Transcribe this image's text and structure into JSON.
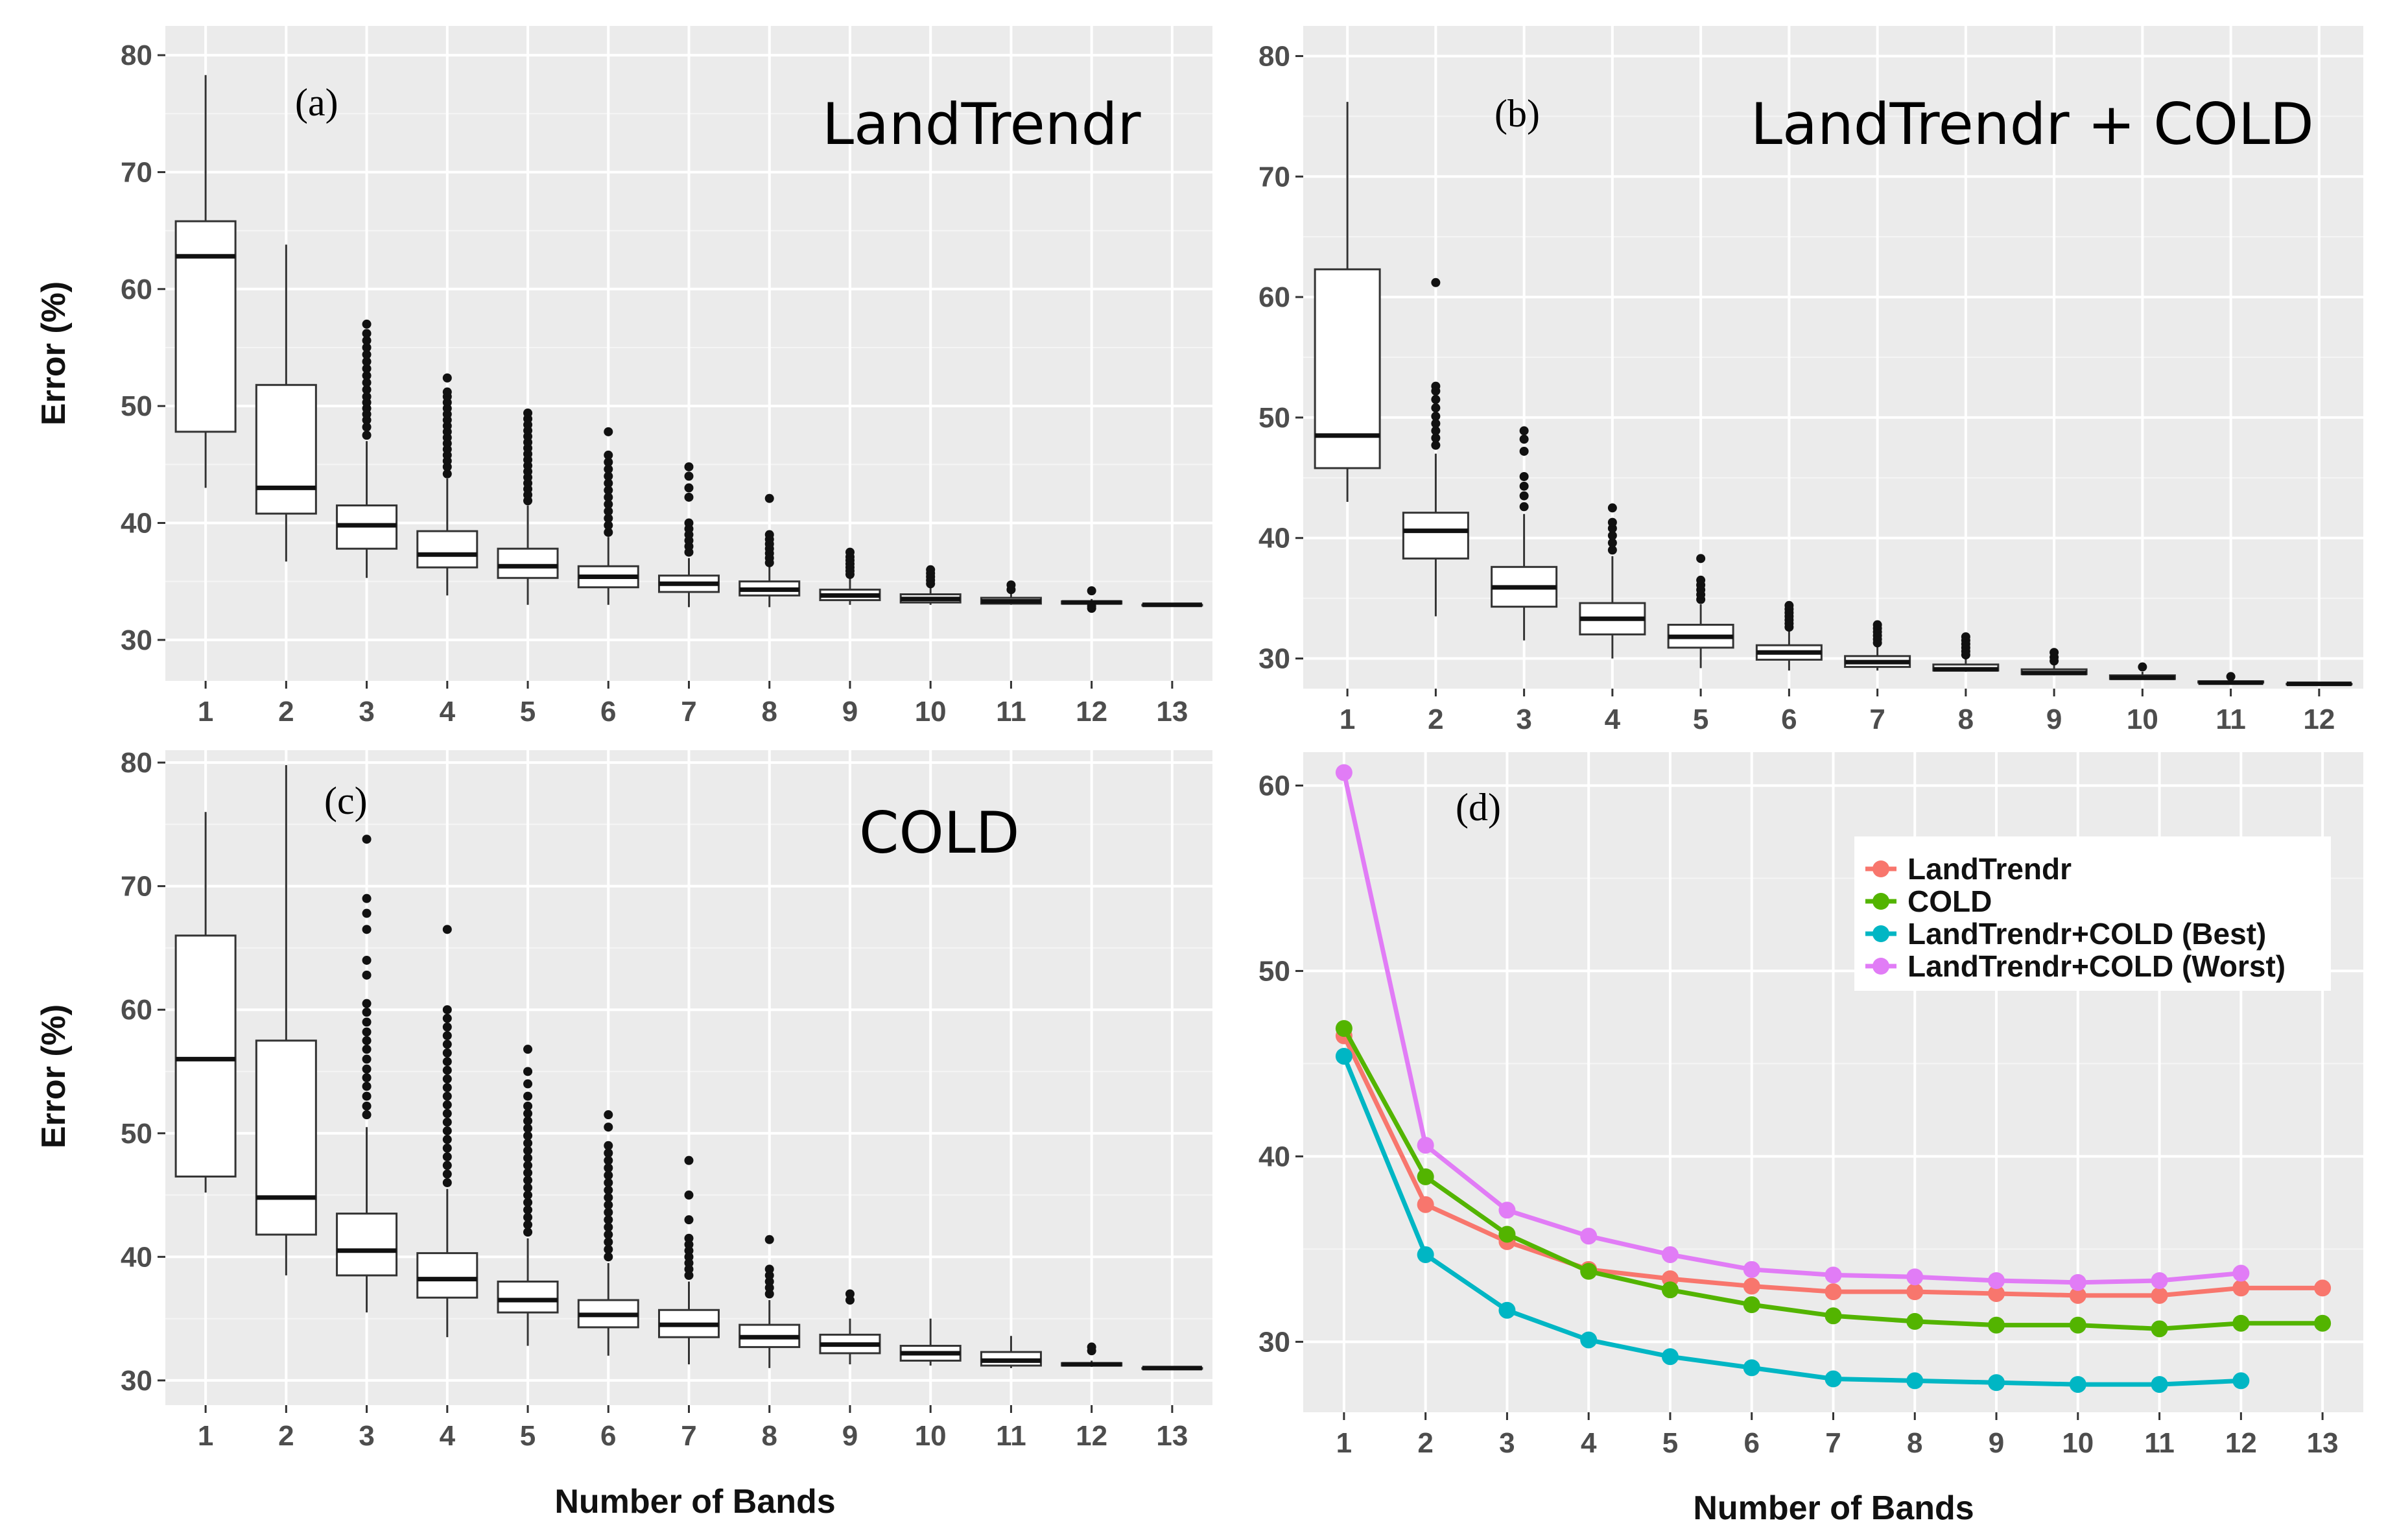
{
  "figure": {
    "xlabel": "Number of Bands",
    "ylabel": "Error (%)"
  },
  "chart_data": [
    {
      "id": "a",
      "type": "boxplot",
      "panel_label": "(a)",
      "title": "LandTrendr",
      "ylabel": "Error (%)",
      "xlabel": "",
      "ylim": [
        26.5,
        82.5
      ],
      "yticks": [
        30,
        40,
        50,
        60,
        70,
        80
      ],
      "categories": [
        "1",
        "2",
        "3",
        "4",
        "5",
        "6",
        "7",
        "8",
        "9",
        "10",
        "11",
        "12",
        "13"
      ],
      "boxes": [
        {
          "whislo": 43.0,
          "q1": 47.8,
          "med": 62.8,
          "q3": 65.8,
          "whishi": 78.3,
          "outliers": []
        },
        {
          "whislo": 36.7,
          "q1": 40.8,
          "med": 43.0,
          "q3": 51.8,
          "whishi": 63.8,
          "outliers": []
        },
        {
          "whislo": 35.3,
          "q1": 37.8,
          "med": 39.8,
          "q3": 41.5,
          "whishi": 47.0,
          "outliers": [
            47.5,
            48.2,
            48.8,
            49.3,
            49.8,
            50.3,
            50.8,
            51.4,
            52.0,
            52.6,
            53.2,
            53.8,
            54.4,
            55.0,
            55.6,
            56.2,
            57.0
          ]
        },
        {
          "whislo": 33.8,
          "q1": 36.2,
          "med": 37.3,
          "q3": 39.3,
          "whishi": 43.8,
          "outliers": [
            44.2,
            44.8,
            45.3,
            45.8,
            46.3,
            46.8,
            47.3,
            47.8,
            48.3,
            48.8,
            49.3,
            49.8,
            50.3,
            50.8,
            51.2,
            52.4
          ]
        },
        {
          "whislo": 33.0,
          "q1": 35.3,
          "med": 36.3,
          "q3": 37.8,
          "whishi": 41.5,
          "outliers": [
            41.9,
            42.4,
            42.9,
            43.4,
            43.9,
            44.4,
            44.9,
            45.4,
            45.9,
            46.4,
            46.9,
            47.4,
            47.9,
            48.4,
            48.9,
            49.4
          ]
        },
        {
          "whislo": 33.0,
          "q1": 34.5,
          "med": 35.4,
          "q3": 36.3,
          "whishi": 38.8,
          "outliers": [
            39.2,
            39.8,
            40.4,
            41.0,
            41.6,
            42.2,
            42.8,
            43.4,
            44.0,
            44.6,
            45.2,
            45.8,
            47.8
          ]
        },
        {
          "whislo": 32.8,
          "q1": 34.1,
          "med": 34.8,
          "q3": 35.5,
          "whishi": 37.0,
          "outliers": [
            37.5,
            38.0,
            38.5,
            39.0,
            39.5,
            40.0,
            42.2,
            43.0,
            44.0,
            44.8
          ]
        },
        {
          "whislo": 32.8,
          "q1": 33.8,
          "med": 34.3,
          "q3": 35.0,
          "whishi": 36.3,
          "outliers": [
            36.6,
            37.0,
            37.4,
            37.8,
            38.2,
            38.6,
            39.0,
            42.1
          ]
        },
        {
          "whislo": 33.0,
          "q1": 33.4,
          "med": 33.8,
          "q3": 34.3,
          "whishi": 35.3,
          "outliers": [
            35.6,
            35.9,
            36.2,
            36.5,
            36.8,
            37.1,
            37.5
          ]
        },
        {
          "whislo": 33.0,
          "q1": 33.2,
          "med": 33.5,
          "q3": 33.9,
          "whishi": 34.5,
          "outliers": [
            34.8,
            35.1,
            35.4,
            35.7,
            36.0
          ]
        },
        {
          "whislo": 33.0,
          "q1": 33.1,
          "med": 33.3,
          "q3": 33.6,
          "whishi": 34.0,
          "outliers": [
            34.3,
            34.7
          ]
        },
        {
          "whislo": 33.0,
          "q1": 33.1,
          "med": 33.2,
          "q3": 33.3,
          "whishi": 33.5,
          "outliers": [
            32.7,
            32.9,
            34.2
          ]
        },
        {
          "whislo": 33.0,
          "q1": 33.0,
          "med": 33.0,
          "q3": 33.0,
          "whishi": 33.0,
          "outliers": []
        }
      ]
    },
    {
      "id": "b",
      "type": "boxplot",
      "panel_label": "(b)",
      "title": "LandTrendr + COLD",
      "ylabel": "",
      "xlabel": "",
      "ylim": [
        27.5,
        82.5
      ],
      "yticks": [
        30,
        40,
        50,
        60,
        70,
        80
      ],
      "categories": [
        "1",
        "2",
        "3",
        "4",
        "5",
        "6",
        "7",
        "8",
        "9",
        "10",
        "11",
        "12"
      ],
      "boxes": [
        {
          "whislo": 43.0,
          "q1": 45.8,
          "med": 48.5,
          "q3": 62.3,
          "whishi": 76.2,
          "outliers": []
        },
        {
          "whislo": 33.5,
          "q1": 38.3,
          "med": 40.6,
          "q3": 42.1,
          "whishi": 47.0,
          "outliers": [
            47.7,
            48.3,
            48.9,
            49.5,
            50.1,
            50.8,
            51.5,
            52.2,
            52.6,
            61.2
          ]
        },
        {
          "whislo": 31.5,
          "q1": 34.3,
          "med": 35.9,
          "q3": 37.6,
          "whishi": 42.0,
          "outliers": [
            42.6,
            43.5,
            44.3,
            45.1,
            47.2,
            48.2,
            48.9
          ]
        },
        {
          "whislo": 30.0,
          "q1": 32.0,
          "med": 33.3,
          "q3": 34.6,
          "whishi": 38.5,
          "outliers": [
            39.0,
            39.6,
            40.2,
            40.8,
            41.3,
            42.5
          ]
        },
        {
          "whislo": 29.2,
          "q1": 30.9,
          "med": 31.8,
          "q3": 32.8,
          "whishi": 34.5,
          "outliers": [
            34.9,
            35.3,
            35.7,
            36.1,
            36.5,
            38.3
          ]
        },
        {
          "whislo": 29.0,
          "q1": 29.9,
          "med": 30.5,
          "q3": 31.1,
          "whishi": 32.3,
          "outliers": [
            32.6,
            32.9,
            33.2,
            33.5,
            33.8,
            34.1,
            34.4
          ]
        },
        {
          "whislo": 29.0,
          "q1": 29.3,
          "med": 29.7,
          "q3": 30.2,
          "whishi": 31.0,
          "outliers": [
            31.3,
            31.6,
            31.9,
            32.2,
            32.5,
            32.8
          ]
        },
        {
          "whislo": 28.9,
          "q1": 29.0,
          "med": 29.1,
          "q3": 29.5,
          "whishi": 30.0,
          "outliers": [
            30.3,
            30.6,
            30.9,
            31.2,
            31.5,
            31.8
          ]
        },
        {
          "whislo": 28.6,
          "q1": 28.7,
          "med": 28.8,
          "q3": 29.1,
          "whishi": 29.5,
          "outliers": [
            29.8,
            30.1,
            30.5
          ]
        },
        {
          "whislo": 28.3,
          "q1": 28.3,
          "med": 28.4,
          "q3": 28.6,
          "whishi": 28.9,
          "outliers": [
            29.3
          ]
        },
        {
          "whislo": 28.0,
          "q1": 28.0,
          "med": 28.0,
          "q3": 28.1,
          "whishi": 28.1,
          "outliers": [
            28.5
          ]
        },
        {
          "whislo": 27.9,
          "q1": 27.9,
          "med": 27.9,
          "q3": 27.9,
          "whishi": 27.9,
          "outliers": []
        }
      ]
    },
    {
      "id": "c",
      "type": "boxplot",
      "panel_label": "(c)",
      "title": "COLD",
      "ylabel": "Error (%)",
      "xlabel": "Number of Bands",
      "ylim": [
        28.0,
        81.0
      ],
      "yticks": [
        30,
        40,
        50,
        60,
        70,
        80
      ],
      "categories": [
        "1",
        "2",
        "3",
        "4",
        "5",
        "6",
        "7",
        "8",
        "9",
        "10",
        "11",
        "12",
        "13"
      ],
      "boxes": [
        {
          "whislo": 45.2,
          "q1": 46.5,
          "med": 56.0,
          "q3": 66.0,
          "whishi": 76.0,
          "outliers": []
        },
        {
          "whislo": 38.5,
          "q1": 41.8,
          "med": 44.8,
          "q3": 57.5,
          "whishi": 79.8,
          "outliers": []
        },
        {
          "whislo": 35.5,
          "q1": 38.5,
          "med": 40.5,
          "q3": 43.5,
          "whishi": 50.5,
          "outliers": [
            51.5,
            52.2,
            53.0,
            53.8,
            54.5,
            55.2,
            56.0,
            56.8,
            57.5,
            58.2,
            59.0,
            59.8,
            60.5,
            62.8,
            64.0,
            66.5,
            67.8,
            69.0,
            73.8
          ]
        },
        {
          "whislo": 33.5,
          "q1": 36.7,
          "med": 38.2,
          "q3": 40.3,
          "whishi": 45.5,
          "outliers": [
            46.0,
            46.7,
            47.4,
            48.1,
            48.8,
            49.5,
            50.2,
            50.9,
            51.6,
            52.3,
            53.0,
            53.7,
            54.4,
            55.1,
            55.8,
            56.5,
            57.2,
            57.9,
            58.6,
            59.3,
            60.0,
            66.5
          ]
        },
        {
          "whislo": 32.8,
          "q1": 35.5,
          "med": 36.5,
          "q3": 38.0,
          "whishi": 41.5,
          "outliers": [
            42.0,
            42.6,
            43.2,
            43.8,
            44.4,
            45.0,
            45.6,
            46.2,
            46.8,
            47.4,
            48.0,
            48.6,
            49.2,
            49.8,
            50.4,
            51.0,
            51.6,
            52.2,
            53.0,
            54.0,
            55.0,
            56.8
          ]
        },
        {
          "whislo": 32.0,
          "q1": 34.3,
          "med": 35.3,
          "q3": 36.5,
          "whishi": 39.5,
          "outliers": [
            40.0,
            40.6,
            41.2,
            41.8,
            42.4,
            43.0,
            43.6,
            44.2,
            44.8,
            45.4,
            46.0,
            46.6,
            47.2,
            47.8,
            48.4,
            49.0,
            50.5,
            51.5
          ]
        },
        {
          "whislo": 31.3,
          "q1": 33.5,
          "med": 34.5,
          "q3": 35.7,
          "whishi": 38.0,
          "outliers": [
            38.5,
            39.0,
            39.5,
            40.0,
            40.5,
            41.0,
            41.5,
            43.0,
            45.0,
            47.8
          ]
        },
        {
          "whislo": 31.0,
          "q1": 32.7,
          "med": 33.5,
          "q3": 34.5,
          "whishi": 36.5,
          "outliers": [
            37.0,
            37.5,
            38.0,
            38.5,
            39.0,
            41.4
          ]
        },
        {
          "whislo": 31.3,
          "q1": 32.2,
          "med": 32.9,
          "q3": 33.7,
          "whishi": 35.0,
          "outliers": [
            36.5,
            37.0
          ]
        },
        {
          "whislo": 31.2,
          "q1": 31.6,
          "med": 32.2,
          "q3": 32.8,
          "whishi": 35.0,
          "outliers": []
        },
        {
          "whislo": 31.0,
          "q1": 31.2,
          "med": 31.6,
          "q3": 32.3,
          "whishi": 33.6,
          "outliers": []
        },
        {
          "whislo": 31.1,
          "q1": 31.2,
          "med": 31.3,
          "q3": 31.4,
          "whishi": 31.6,
          "outliers": [
            32.4,
            32.7
          ]
        },
        {
          "whislo": 31.0,
          "q1": 31.0,
          "med": 31.0,
          "q3": 31.0,
          "whishi": 31.0,
          "outliers": []
        }
      ]
    },
    {
      "id": "d",
      "type": "line",
      "panel_label": "(d)",
      "title": "",
      "ylabel": "",
      "xlabel": "Number of Bands",
      "xlim": [
        0.5,
        13.5
      ],
      "ylim": [
        26.2,
        61.8
      ],
      "yticks": [
        30,
        40,
        50,
        60
      ],
      "xticks": [
        1,
        2,
        3,
        4,
        5,
        6,
        7,
        8,
        9,
        10,
        11,
        12,
        13
      ],
      "legend_position": "top-right",
      "series": [
        {
          "name": "LandTrendr",
          "color": "#f8766d",
          "x": [
            1,
            2,
            3,
            4,
            5,
            6,
            7,
            8,
            9,
            10,
            11,
            12,
            13
          ],
          "values": [
            46.5,
            37.4,
            35.4,
            33.9,
            33.4,
            33.0,
            32.7,
            32.7,
            32.6,
            32.5,
            32.5,
            32.9,
            32.9
          ]
        },
        {
          "name": "COLD",
          "color": "#53b400",
          "x": [
            1,
            2,
            3,
            4,
            5,
            6,
            7,
            8,
            9,
            10,
            11,
            12,
            13
          ],
          "values": [
            46.9,
            38.9,
            35.8,
            33.8,
            32.8,
            32.0,
            31.4,
            31.1,
            30.9,
            30.9,
            30.7,
            31.0,
            31.0
          ]
        },
        {
          "name": "LandTrendr+COLD (Best)",
          "color": "#00b6c4",
          "x": [
            1,
            2,
            3,
            4,
            5,
            6,
            7,
            8,
            9,
            10,
            11,
            12
          ],
          "values": [
            45.4,
            34.7,
            31.7,
            30.1,
            29.2,
            28.6,
            28.0,
            27.9,
            27.8,
            27.7,
            27.7,
            27.9
          ]
        },
        {
          "name": "LandTrendr+COLD (Worst)",
          "color": "#e17cf6",
          "x": [
            1,
            2,
            3,
            4,
            5,
            6,
            7,
            8,
            9,
            10,
            11,
            12
          ],
          "values": [
            60.7,
            40.6,
            37.1,
            35.7,
            34.7,
            33.9,
            33.6,
            33.5,
            33.3,
            33.2,
            33.3,
            33.7
          ]
        }
      ]
    }
  ]
}
